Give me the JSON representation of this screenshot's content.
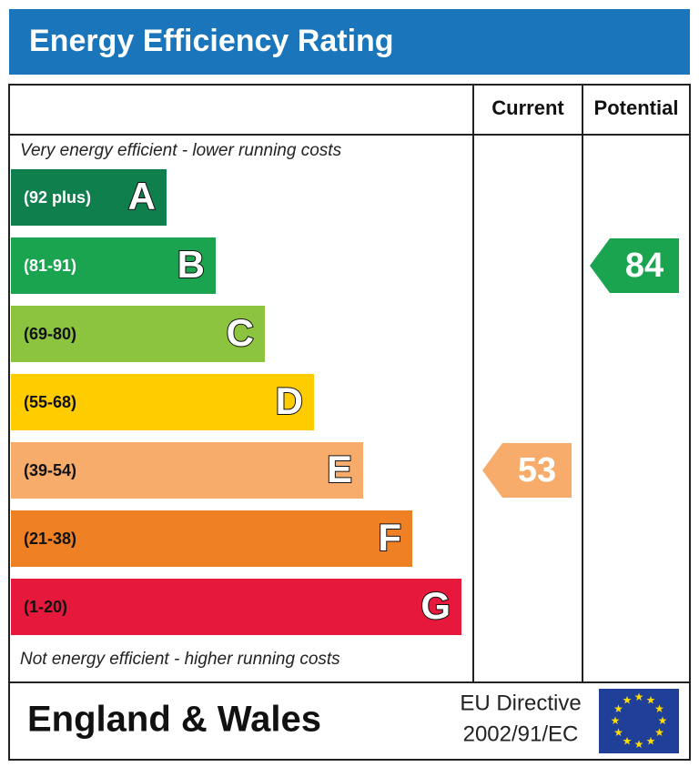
{
  "title": "Energy Efficiency Rating",
  "headers": {
    "current": "Current",
    "potential": "Potential"
  },
  "top_note": "Very energy efficient - lower running costs",
  "bottom_note": "Not energy efficient - higher running costs",
  "bands": [
    {
      "range": "(92 plus)",
      "letter": "A",
      "color": "#107f4e",
      "range_color": "#ffffff"
    },
    {
      "range": "(81-91)",
      "letter": "B",
      "color": "#1ba450",
      "range_color": "#ffffff"
    },
    {
      "range": "(69-80)",
      "letter": "C",
      "color": "#8cc43f",
      "range_color": "#111111"
    },
    {
      "range": "(55-68)",
      "letter": "D",
      "color": "#ffcc00",
      "range_color": "#111111"
    },
    {
      "range": "(39-54)",
      "letter": "E",
      "color": "#f7ac6b",
      "range_color": "#111111"
    },
    {
      "range": "(21-38)",
      "letter": "F",
      "color": "#ef8024",
      "range_color": "#111111"
    },
    {
      "range": "(1-20)",
      "letter": "G",
      "color": "#e6193c",
      "range_color": "#111111"
    }
  ],
  "current": {
    "value": 53,
    "color": "#f7ac6b"
  },
  "potential": {
    "value": 84,
    "color": "#1ba450"
  },
  "footer": {
    "region": "England & Wales",
    "directive_line1": "EU Directive",
    "directive_line2": "2002/91/EC"
  }
}
